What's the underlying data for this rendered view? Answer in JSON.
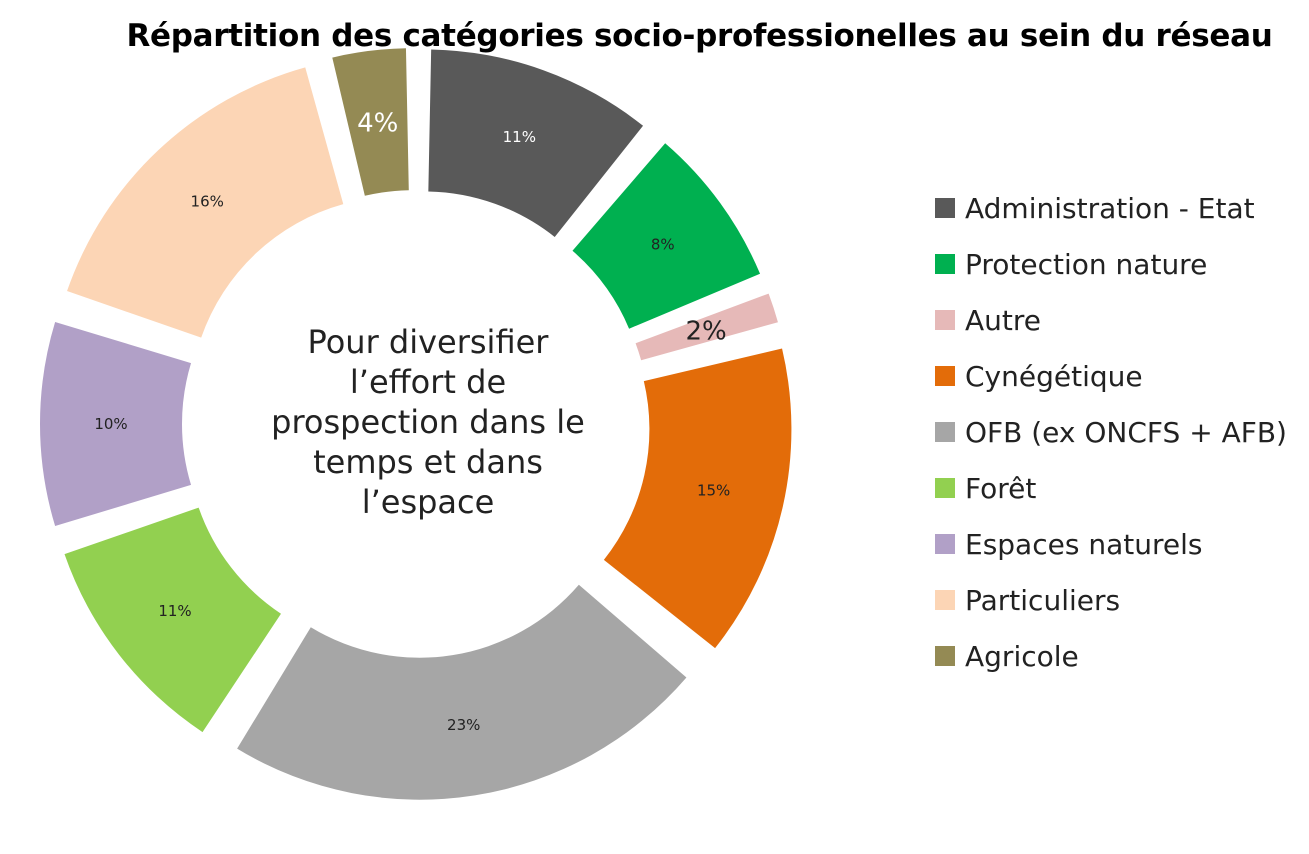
{
  "chart_data": {
    "type": "pie",
    "title": "Répartition des catégories socio-professionelles au sein du réseau",
    "center_text": [
      "Pour diversifier",
      "l’effort de",
      "prospection dans le",
      "temps et dans",
      "l’espace"
    ],
    "legend_position": "right",
    "slices": [
      {
        "label": "Administration - Etat",
        "value": 11,
        "value_label": "11%",
        "color": "#595959"
      },
      {
        "label": "Protection nature",
        "value": 8,
        "value_label": "8%",
        "color": "#00B050"
      },
      {
        "label": "Autre",
        "value": 2,
        "value_label": "2%",
        "color": "#E6B9B8"
      },
      {
        "label": "Cynégétique",
        "value": 15,
        "value_label": "15%",
        "color": "#E36C09"
      },
      {
        "label": "OFB (ex ONCFS + AFB)",
        "value": 23,
        "value_label": "23%",
        "color": "#A6A6A6"
      },
      {
        "label": "Forêt",
        "value": 11,
        "value_label": "11%",
        "color": "#92D050"
      },
      {
        "label": "Espaces naturels",
        "value": 10,
        "value_label": "10%",
        "color": "#B1A0C7"
      },
      {
        "label": "Particuliers",
        "value": 16,
        "value_label": "16%",
        "color": "#FCD5B5"
      },
      {
        "label": "Agricole",
        "value": 4,
        "value_label": "4%",
        "color": "#948A54"
      }
    ]
  }
}
